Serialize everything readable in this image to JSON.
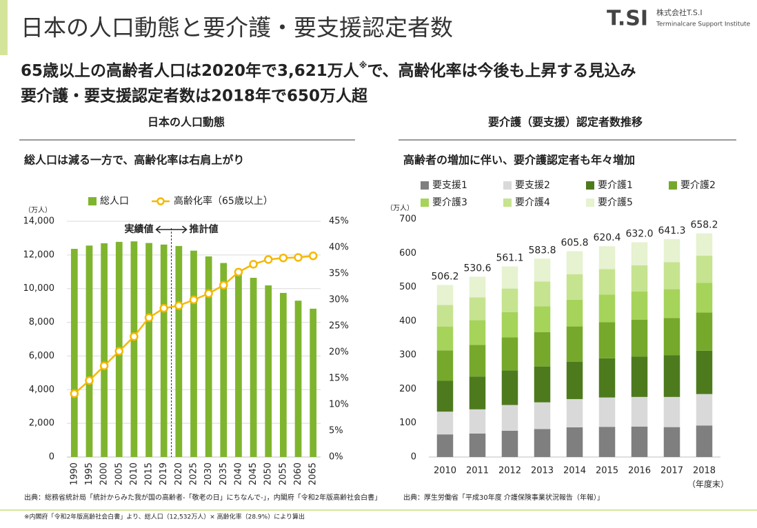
{
  "header": {
    "title": "日本の人口動態と要介護・要支援認定者数",
    "logo": "T.SI",
    "company": "株式会社T.S.I",
    "company_en": "Terminalcare Support Institute"
  },
  "headline": {
    "line1_a": "65歳以上の高齢者人口は2020年で3,621万人",
    "line1_mark": "※",
    "line1_b": "で、高齢化率は今後も上昇する見込み",
    "line2": "要介護・要支援認定者数は2018年で650万人超"
  },
  "sections": [
    "日本の人口動態",
    "要介護（要支援）認定者数推移"
  ],
  "chart_data": [
    {
      "type": "bar",
      "title": "総人口は減る一方で、高齢化率は右肩上がり",
      "y_unit": "（万人）",
      "annotations": [
        "実績値",
        "推計値"
      ],
      "categories": [
        "1990",
        "1995",
        "2000",
        "2005",
        "2010",
        "2015",
        "2019",
        "2020",
        "2025",
        "2030",
        "2035",
        "2040",
        "2045",
        "2050",
        "2055",
        "2060",
        "2065"
      ],
      "series": [
        {
          "name": "総人口",
          "color": "#7fb52e",
          "values": [
            12361,
            12557,
            12693,
            12777,
            12806,
            12709,
            12617,
            12532,
            12254,
            11913,
            11522,
            11092,
            10642,
            10192,
            9744,
            9284,
            8808
          ]
        },
        {
          "name": "高齢化率（65歳以上）",
          "color": "#f5b800",
          "type": "line",
          "axis": "y2",
          "values": [
            12.1,
            14.6,
            17.4,
            20.2,
            23.0,
            26.6,
            28.4,
            28.9,
            30.0,
            31.2,
            32.8,
            35.3,
            36.8,
            37.7,
            38.0,
            38.1,
            38.4
          ]
        }
      ],
      "ylim": [
        0,
        14000
      ],
      "yticks": [
        0,
        {
          "value": 2000,
          "label": "2,000"
        },
        {
          "value": 4000,
          "label": "4,000"
        },
        {
          "value": 6000,
          "label": "6,000"
        },
        {
          "value": 8000,
          "label": "8,000"
        },
        {
          "value": 10000,
          "label": "10,000"
        },
        {
          "value": 12000,
          "label": "12,000"
        },
        {
          "value": 14000,
          "label": "14,000"
        }
      ],
      "y2lim": [
        0,
        45
      ],
      "y2ticks": [
        {
          "value": 0,
          "label": "0%"
        },
        {
          "value": 5,
          "label": "5%"
        },
        {
          "value": 10,
          "label": "10%"
        },
        {
          "value": 15,
          "label": "15%"
        },
        {
          "value": 20,
          "label": "20%"
        },
        {
          "value": 25,
          "label": "25%"
        },
        {
          "value": 30,
          "label": "30%"
        },
        {
          "value": 35,
          "label": "35%"
        },
        {
          "value": 40,
          "label": "40%"
        },
        {
          "value": 45,
          "label": "45%"
        }
      ],
      "grid": true,
      "source": "出典：総務省統計局「統計からみた我が国の高齢者-「敬老の日」にちなんで-」，内閣府「令和2年版高齢社会白書」"
    },
    {
      "type": "bar",
      "stacked": true,
      "title": "高齢者の増加に伴い、要介護認定者も年々増加",
      "y_unit": "（万人）",
      "x_unit": "（年度末）",
      "categories": [
        "2010",
        "2011",
        "2012",
        "2013",
        "2014",
        "2015",
        "2016",
        "2017",
        "2018"
      ],
      "series": [
        {
          "name": "要支援1",
          "color": "#7f7f7f",
          "values": [
            66.6,
            69.2,
            77.4,
            82.4,
            87.4,
            88.8,
            89.6,
            88.0,
            92.8
          ]
        },
        {
          "name": "要支援2",
          "color": "#d9d9d9",
          "values": [
            66.9,
            71.1,
            75.7,
            78.5,
            83.1,
            86.4,
            87.2,
            88.8,
            92.5
          ]
        },
        {
          "name": "要介護1",
          "color": "#4e7a1e",
          "values": [
            90.7,
            96.7,
            101.4,
            105.6,
            110.2,
            115.3,
            119.1,
            122.5,
            127.4
          ]
        },
        {
          "name": "要介護2",
          "color": "#76a82b",
          "values": [
            89.6,
            93.2,
            97.7,
            100.8,
            103.6,
            106.3,
            108.5,
            109.9,
            112.5
          ]
        },
        {
          "name": "要介護3",
          "color": "#a6d35a",
          "values": [
            70.4,
            72.4,
            74.0,
            76.3,
            78.6,
            81.0,
            82.5,
            84.7,
            87.2
          ]
        },
        {
          "name": "要介護4",
          "color": "#c6e390",
          "values": [
            63.1,
            67.4,
            69.7,
            72.7,
            74.8,
            75.3,
            77.1,
            79.6,
            80.0
          ]
        },
        {
          "name": "要介護5",
          "color": "#e6f2d0",
          "values": [
            58.9,
            60.6,
            65.2,
            67.5,
            68.1,
            67.3,
            68.0,
            67.8,
            65.8
          ]
        }
      ],
      "totals": [
        506.2,
        530.6,
        561.1,
        583.8,
        605.8,
        620.4,
        632.0,
        641.3,
        658.2
      ],
      "total_labels": [
        "506.2",
        "530.6",
        "561.1",
        "583.8",
        "605.8",
        "620.4",
        "632.0",
        "641.3",
        "658.2"
      ],
      "ylim": [
        0,
        700
      ],
      "yticks": [
        0,
        100,
        200,
        300,
        400,
        500,
        600,
        700
      ],
      "grid": false,
      "source": "出典：厚生労働省「平成30年度 介護保険事業状況報告（年報）」"
    }
  ],
  "footnote": "※内閣府「令和2年版高齢社会白書」より、総人口（12,532万人）× 高齢化率（28.9%）により算出"
}
